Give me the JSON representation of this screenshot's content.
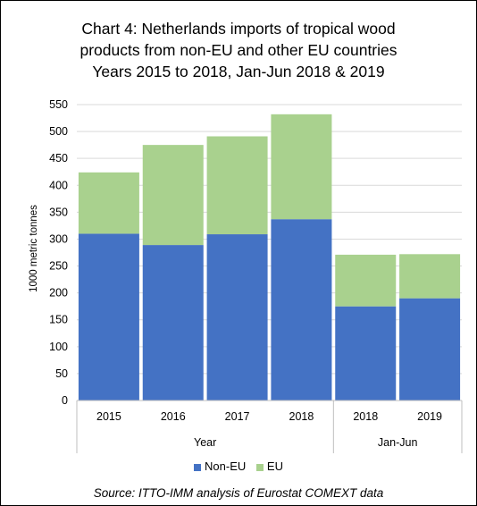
{
  "chart_data": {
    "type": "bar",
    "stacked": true,
    "title_lines": [
      "Chart 4: Netherlands imports of tropical wood",
      "products from non-EU and other EU countries",
      "Years 2015 to 2018, Jan-Jun 2018 & 2019"
    ],
    "ylabel": "1000 metric tonnes",
    "ylim": [
      0,
      550
    ],
    "yticks": [
      "0",
      "50",
      "100",
      "150",
      "200",
      "250",
      "300",
      "350",
      "400",
      "450",
      "500",
      "550"
    ],
    "categories": [
      "2015",
      "2016",
      "2017",
      "2018",
      "2018",
      "2019"
    ],
    "groups": [
      {
        "label": "Year",
        "span": 4
      },
      {
        "label": "Jan-Jun",
        "span": 2
      }
    ],
    "series": [
      {
        "name": "Non-EU",
        "color": "#4472C4",
        "values": [
          310,
          289,
          309,
          337,
          175,
          190
        ]
      },
      {
        "name": "EU",
        "color": "#A9D18E",
        "values": [
          114,
          186,
          182,
          195,
          96,
          82
        ]
      }
    ],
    "grid": true,
    "legend_position": "bottom",
    "source": "Source: ITTO-IMM analysis of Eurostat COMEXT data"
  }
}
